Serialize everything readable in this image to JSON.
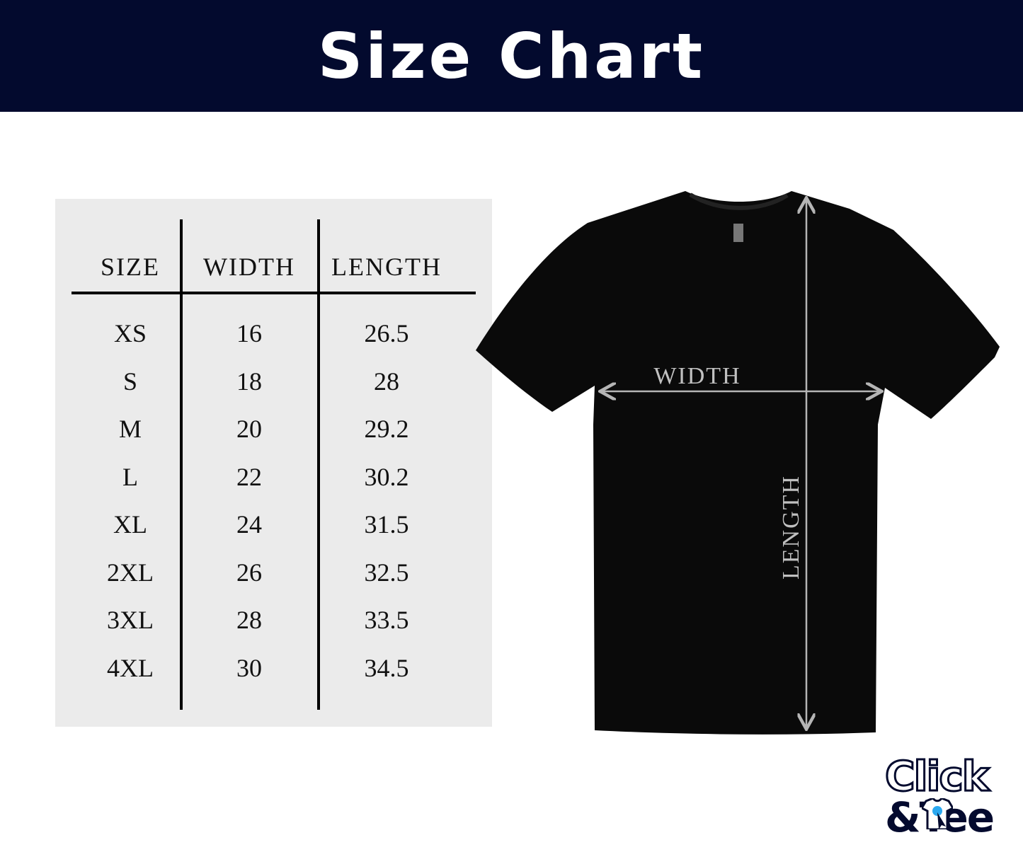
{
  "header": {
    "title": "Size Chart"
  },
  "table": {
    "columns": [
      "SIZE",
      "WIDTH",
      "LENGTH"
    ],
    "rows": [
      [
        "XS",
        "16",
        "26.5"
      ],
      [
        "S",
        "18",
        "28"
      ],
      [
        "M",
        "20",
        "29.2"
      ],
      [
        "L",
        "22",
        "30.2"
      ],
      [
        "XL",
        "24",
        "31.5"
      ],
      [
        "2XL",
        "26",
        "32.5"
      ],
      [
        "3XL",
        "28",
        "33.5"
      ],
      [
        "4XL",
        "30",
        "34.5"
      ]
    ]
  },
  "diagram": {
    "width_label": "WIDTH",
    "length_label": "LENGTH",
    "shirt_color": "#0a0a0a",
    "arrow_color": "#b5b5b5"
  },
  "logo": {
    "line1": "Click",
    "line2": "&Tee"
  },
  "colors": {
    "header_bg": "#030a2e",
    "panel_bg": "#ebebeb",
    "logo_accent": "#2aa8f0"
  }
}
